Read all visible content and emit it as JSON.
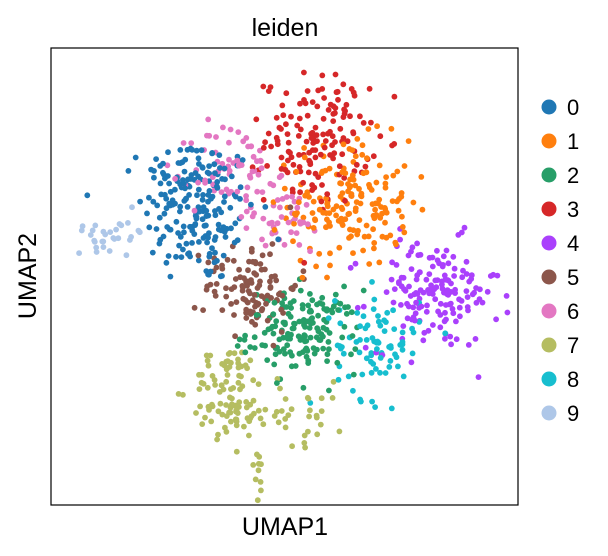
{
  "chart_data": {
    "type": "scatter",
    "title": "leiden",
    "xlabel": "UMAP1",
    "ylabel": "UMAP2",
    "xlim": [
      0,
      100
    ],
    "ylim": [
      0,
      100
    ],
    "grid": false,
    "legend_position": "right",
    "series": [
      {
        "name": "0",
        "color": "#1f77b4",
        "clusters": [
          {
            "cx": 32,
            "cy": 64,
            "sx": 6,
            "sy": 8,
            "n": 160
          },
          {
            "cx": 28,
            "cy": 72,
            "sx": 4,
            "sy": 4,
            "n": 40
          }
        ]
      },
      {
        "name": "1",
        "color": "#ff7f0e",
        "clusters": [
          {
            "cx": 64,
            "cy": 66,
            "sx": 6.5,
            "sy": 7,
            "n": 170
          }
        ]
      },
      {
        "name": "2",
        "color": "#279e68",
        "clusters": [
          {
            "cx": 54,
            "cy": 38,
            "sx": 6,
            "sy": 4.5,
            "n": 160
          }
        ]
      },
      {
        "name": "3",
        "color": "#d62728",
        "clusters": [
          {
            "cx": 57,
            "cy": 80,
            "sx": 5.5,
            "sy": 7,
            "n": 150
          }
        ]
      },
      {
        "name": "4",
        "color": "#aa40fc",
        "clusters": [
          {
            "cx": 82,
            "cy": 46,
            "sx": 7,
            "sy": 6,
            "n": 160
          }
        ]
      },
      {
        "name": "5",
        "color": "#8c564b",
        "clusters": [
          {
            "cx": 43,
            "cy": 48,
            "sx": 5,
            "sy": 5,
            "n": 110
          }
        ]
      },
      {
        "name": "6",
        "color": "#e377c2",
        "clusters": [
          {
            "cx": 39,
            "cy": 73,
            "sx": 4.5,
            "sy": 5.5,
            "n": 70
          },
          {
            "cx": 50,
            "cy": 62,
            "sx": 5,
            "sy": 4,
            "n": 40
          }
        ]
      },
      {
        "name": "7",
        "color": "#b5bd61",
        "clusters": [
          {
            "cx": 38,
            "cy": 25,
            "sx": 4,
            "sy": 5,
            "n": 90
          },
          {
            "cx": 52,
            "cy": 20,
            "sx": 6,
            "sy": 3.5,
            "n": 40
          },
          {
            "cx": 44,
            "cy": 8,
            "sx": 1,
            "sy": 3,
            "n": 10
          }
        ]
      },
      {
        "name": "8",
        "color": "#17becf",
        "clusters": [
          {
            "cx": 70,
            "cy": 35,
            "sx": 4.5,
            "sy": 6,
            "n": 80
          }
        ]
      },
      {
        "name": "9",
        "color": "#aec7e8",
        "clusters": [
          {
            "cx": 13,
            "cy": 60,
            "sx": 4,
            "sy": 2,
            "n": 30
          }
        ]
      }
    ]
  }
}
